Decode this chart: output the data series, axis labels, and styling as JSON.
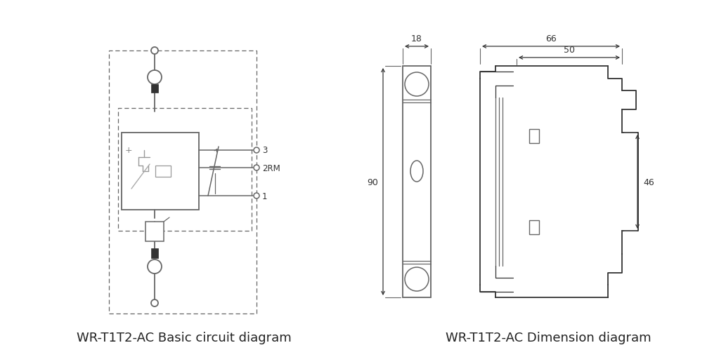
{
  "bg_color": "#ffffff",
  "line_color": "#666666",
  "line_color_dark": "#333333",
  "title1": "WR-T1T2-AC Basic circuit diagram",
  "title2": "WR-T1T2-AC Dimension diagram",
  "title_fontsize": 13,
  "dim_labels": {
    "top_width": "18",
    "side_width_66": "66",
    "side_width_50": "50",
    "height_90": "90",
    "height_46": "46"
  },
  "relay_labels": [
    "3",
    "2RM",
    "1"
  ]
}
